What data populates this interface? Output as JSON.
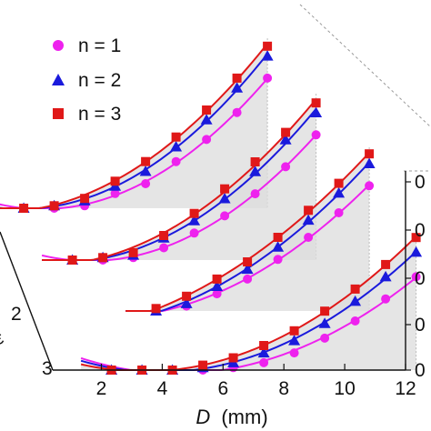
{
  "chart_data": {
    "type": "line",
    "projection": "3d-waterfall",
    "xlabel_symbol": "D",
    "xlabel_unit": "(mm)",
    "xlim": [
      0.4,
      12
    ],
    "x_ticks": [
      "2",
      "4",
      "6",
      "8",
      "10",
      "12"
    ],
    "y_ticks_visible": [
      "2",
      "3"
    ],
    "z_ticks_visible": [
      "0",
      "0",
      "0",
      "0",
      "0"
    ],
    "ylabel_fragment": "ε",
    "grid": false,
    "legend_position": "top-left",
    "legend": [
      {
        "label": "n = 1",
        "color": "#ee22ee",
        "marker": "circle"
      },
      {
        "label": "n = 2",
        "color": "#1a1adc",
        "marker": "triangle"
      },
      {
        "label": "n = 3",
        "color": "#e01818",
        "marker": "square"
      }
    ],
    "colors": {
      "n1": "#ee22ee",
      "n2": "#1a1adc",
      "n3": "#e01818",
      "panel": "#dcdcdc"
    },
    "slices": [
      {
        "x": [
          0.6,
          1.6,
          2.6,
          3.6,
          4.6,
          5.6,
          6.6,
          7.6,
          8.6
        ],
        "series": [
          {
            "name": "n = 1",
            "values": [
              0,
              0,
              1,
              6,
              10,
              19,
              28,
              39,
              53
            ]
          },
          {
            "name": "n = 2",
            "values": [
              0,
              1,
              3,
              9,
              15,
              25,
              36,
              49,
              62
            ]
          },
          {
            "name": "n = 3",
            "values": [
              0,
              1,
              4,
              11,
              19,
              29,
              40,
              53,
              66
            ]
          }
        ]
      },
      {
        "x": [
          1.6,
          2.6,
          3.6,
          4.6,
          5.6,
          6.6,
          7.6,
          8.6,
          9.6
        ],
        "series": [
          {
            "name": "n = 1",
            "values": [
              0,
              0,
              1,
              5,
              11,
              18,
              27,
              38,
              51
            ]
          },
          {
            "name": "n = 2",
            "values": [
              0,
              1,
              2,
              9,
              16,
              25,
              36,
              49,
              60
            ]
          },
          {
            "name": "n = 3",
            "values": [
              0,
              1,
              3,
              10,
              19,
              29,
              40,
              52,
              64
            ]
          }
        ]
      },
      {
        "x": [
          3.6,
          4.6,
          5.6,
          6.6,
          7.6,
          8.6,
          9.6,
          10.6
        ],
        "series": [
          {
            "name": "n = 1",
            "values": [
              0,
              2,
              7,
              13,
              21,
              30,
              40,
              51
            ]
          },
          {
            "name": "n = 2",
            "values": [
              0,
              3,
              10,
              17,
              26,
              37,
              48,
              60
            ]
          },
          {
            "name": "n = 3",
            "values": [
              1,
              6,
              13,
              20,
              30,
              41,
              52,
              64
            ]
          }
        ]
      },
      {
        "x": [
          1.6,
          2.6,
          3.6,
          4.6,
          5.6,
          6.6,
          7.6,
          8.6,
          9.6,
          10.6,
          11.6
        ],
        "series": [
          {
            "name": "n = 1",
            "values": [
              0,
              0,
              0,
              0,
              1,
              3,
              7,
              13,
              20,
              29,
              38
            ]
          },
          {
            "name": "n = 2",
            "values": [
              0,
              0,
              0,
              1,
              3,
              7,
              12,
              19,
              28,
              38,
              48
            ]
          },
          {
            "name": "n = 3",
            "values": [
              0,
              0,
              0,
              2,
              5,
              10,
              16,
              24,
              33,
              43,
              54
            ]
          }
        ]
      }
    ]
  }
}
